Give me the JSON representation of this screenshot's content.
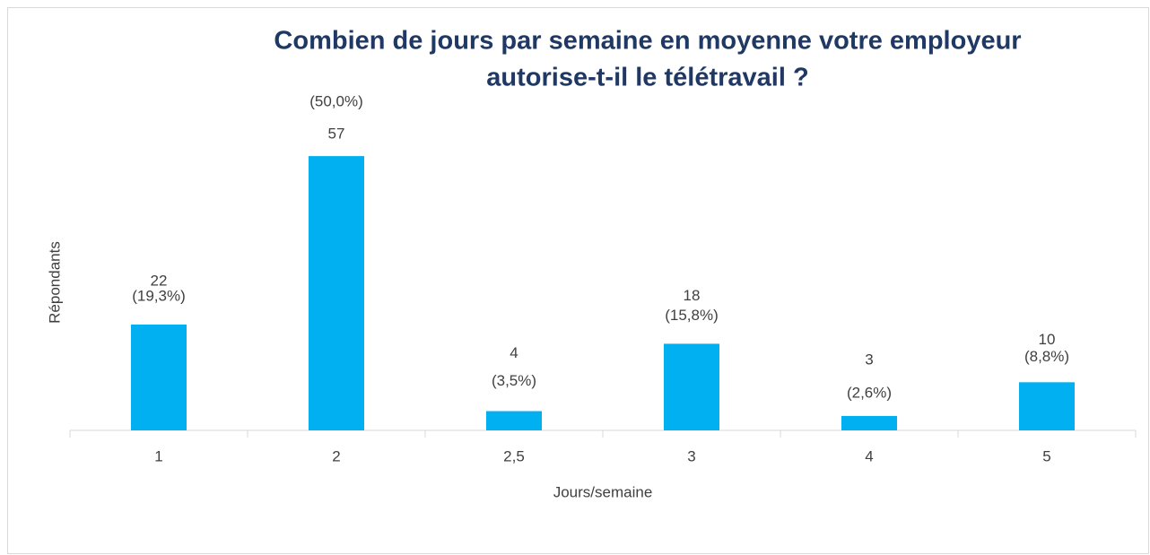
{
  "chart_data": {
    "type": "bar",
    "title": [
      "Combien de jours par semaine en moyenne votre employeur",
      "autorise-t-il le télétravail ?"
    ],
    "x_label": "Jours/semaine",
    "y_label": "Répondants",
    "categories": [
      "1",
      "2",
      "2,5",
      "3",
      "4",
      "5"
    ],
    "values": [
      22,
      57,
      4,
      18,
      3,
      10
    ],
    "percentages": [
      19.3,
      50.0,
      3.5,
      15.8,
      2.6,
      8.8
    ],
    "percentage_labels": [
      "(19,3%)",
      "(50,0%)",
      "(3,5%)",
      "(15,8%)",
      "(2,6%)",
      "(8,8%)"
    ],
    "color": "#00b0f0",
    "ylim": [
      0,
      60
    ]
  }
}
